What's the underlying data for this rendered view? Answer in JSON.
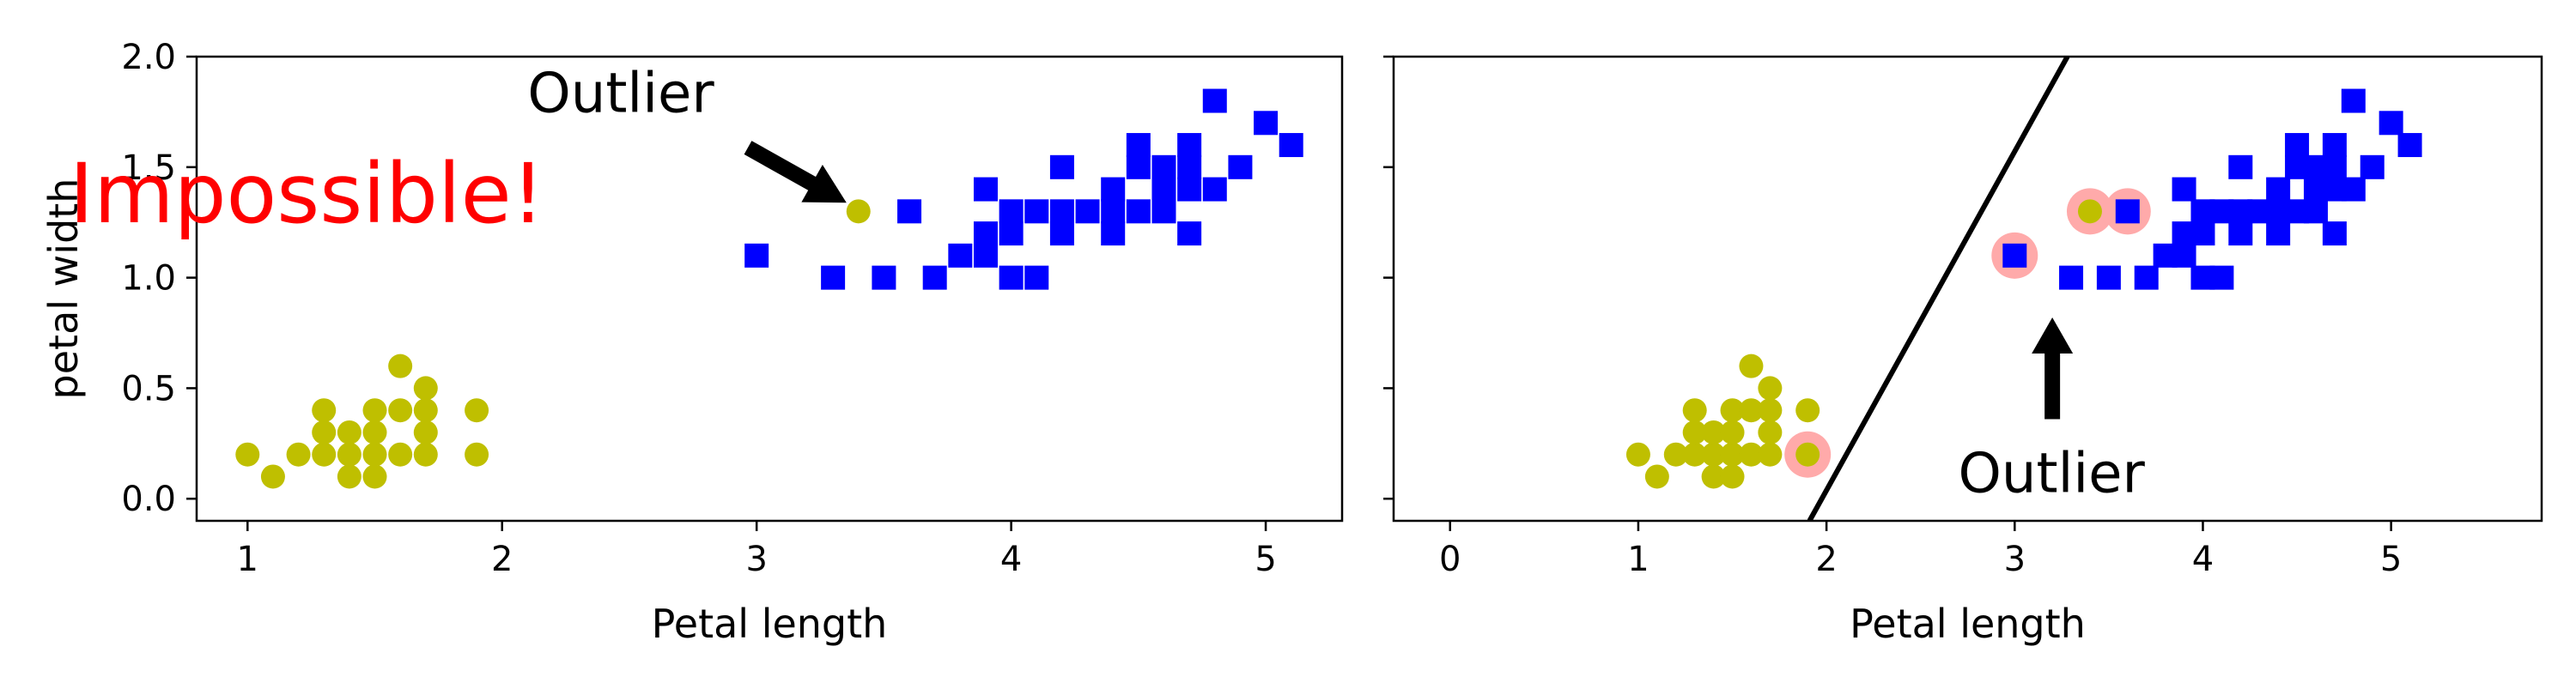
{
  "chart_data": [
    {
      "type": "scatter",
      "xlabel": "Petal length",
      "ylabel": "petal width",
      "xlim": [
        0.8,
        5.3
      ],
      "ylim": [
        -0.1,
        2.0
      ],
      "xticks": [
        "1",
        "2",
        "3",
        "4",
        "5"
      ],
      "yticks": [
        "0.0",
        "0.5",
        "1.0",
        "1.5",
        "2.0"
      ],
      "grid": false,
      "series": [
        {
          "marker": "circle",
          "color": "#bfbf00",
          "points": [
            [
              1.0,
              0.2
            ],
            [
              1.1,
              0.1
            ],
            [
              1.2,
              0.2
            ],
            [
              1.3,
              0.2
            ],
            [
              1.3,
              0.3
            ],
            [
              1.3,
              0.4
            ],
            [
              1.4,
              0.1
            ],
            [
              1.4,
              0.2
            ],
            [
              1.4,
              0.3
            ],
            [
              1.5,
              0.1
            ],
            [
              1.5,
              0.2
            ],
            [
              1.5,
              0.3
            ],
            [
              1.5,
              0.4
            ],
            [
              1.6,
              0.2
            ],
            [
              1.6,
              0.4
            ],
            [
              1.6,
              0.6
            ],
            [
              1.7,
              0.2
            ],
            [
              1.7,
              0.3
            ],
            [
              1.7,
              0.4
            ],
            [
              1.7,
              0.5
            ],
            [
              1.9,
              0.2
            ],
            [
              1.9,
              0.4
            ],
            [
              3.4,
              1.3
            ]
          ]
        },
        {
          "marker": "square",
          "color": "#0000ff",
          "points": [
            [
              3.0,
              1.1
            ],
            [
              3.3,
              1.0
            ],
            [
              3.5,
              1.0
            ],
            [
              3.6,
              1.3
            ],
            [
              3.7,
              1.0
            ],
            [
              3.8,
              1.1
            ],
            [
              3.9,
              1.1
            ],
            [
              3.9,
              1.2
            ],
            [
              3.9,
              1.4
            ],
            [
              4.0,
              1.0
            ],
            [
              4.0,
              1.2
            ],
            [
              4.0,
              1.3
            ],
            [
              4.1,
              1.0
            ],
            [
              4.1,
              1.3
            ],
            [
              4.2,
              1.2
            ],
            [
              4.2,
              1.3
            ],
            [
              4.2,
              1.5
            ],
            [
              4.3,
              1.3
            ],
            [
              4.4,
              1.2
            ],
            [
              4.4,
              1.3
            ],
            [
              4.4,
              1.4
            ],
            [
              4.5,
              1.3
            ],
            [
              4.5,
              1.5
            ],
            [
              4.5,
              1.6
            ],
            [
              4.6,
              1.3
            ],
            [
              4.6,
              1.4
            ],
            [
              4.6,
              1.5
            ],
            [
              4.7,
              1.2
            ],
            [
              4.7,
              1.4
            ],
            [
              4.7,
              1.5
            ],
            [
              4.7,
              1.6
            ],
            [
              4.8,
              1.4
            ],
            [
              4.8,
              1.8
            ],
            [
              4.9,
              1.5
            ],
            [
              5.0,
              1.7
            ],
            [
              5.1,
              1.6
            ]
          ]
        }
      ],
      "annotations": [
        {
          "text": "Outlier",
          "point": [
            3.4,
            1.3
          ],
          "text_pos": [
            2.1,
            1.75
          ],
          "arrow": true
        },
        {
          "text": "Impossible!",
          "pos": [
            0.3,
            1.25
          ],
          "color": "#ff0000"
        }
      ]
    },
    {
      "type": "scatter",
      "xlabel": "Petal length",
      "ylabel": "",
      "xlim": [
        -0.3,
        5.8
      ],
      "ylim": [
        -0.1,
        2.0
      ],
      "xticks": [
        "0",
        "1",
        "2",
        "3",
        "4",
        "5"
      ],
      "yticks": [],
      "grid": false,
      "series": [
        {
          "marker": "circle",
          "color": "#bfbf00",
          "points": [
            [
              1.0,
              0.2
            ],
            [
              1.1,
              0.1
            ],
            [
              1.2,
              0.2
            ],
            [
              1.3,
              0.2
            ],
            [
              1.3,
              0.3
            ],
            [
              1.3,
              0.4
            ],
            [
              1.4,
              0.1
            ],
            [
              1.4,
              0.2
            ],
            [
              1.4,
              0.3
            ],
            [
              1.5,
              0.1
            ],
            [
              1.5,
              0.2
            ],
            [
              1.5,
              0.3
            ],
            [
              1.5,
              0.4
            ],
            [
              1.6,
              0.2
            ],
            [
              1.6,
              0.4
            ],
            [
              1.6,
              0.6
            ],
            [
              1.7,
              0.2
            ],
            [
              1.7,
              0.3
            ],
            [
              1.7,
              0.4
            ],
            [
              1.7,
              0.5
            ],
            [
              1.9,
              0.2
            ],
            [
              1.9,
              0.4
            ],
            [
              3.4,
              1.3
            ]
          ]
        },
        {
          "marker": "square",
          "color": "#0000ff",
          "points": [
            [
              3.0,
              1.1
            ],
            [
              3.3,
              1.0
            ],
            [
              3.5,
              1.0
            ],
            [
              3.6,
              1.3
            ],
            [
              3.7,
              1.0
            ],
            [
              3.8,
              1.1
            ],
            [
              3.9,
              1.1
            ],
            [
              3.9,
              1.2
            ],
            [
              3.9,
              1.4
            ],
            [
              4.0,
              1.0
            ],
            [
              4.0,
              1.2
            ],
            [
              4.0,
              1.3
            ],
            [
              4.1,
              1.0
            ],
            [
              4.1,
              1.3
            ],
            [
              4.2,
              1.2
            ],
            [
              4.2,
              1.3
            ],
            [
              4.2,
              1.5
            ],
            [
              4.3,
              1.3
            ],
            [
              4.4,
              1.2
            ],
            [
              4.4,
              1.3
            ],
            [
              4.4,
              1.4
            ],
            [
              4.5,
              1.3
            ],
            [
              4.5,
              1.5
            ],
            [
              4.5,
              1.6
            ],
            [
              4.6,
              1.3
            ],
            [
              4.6,
              1.4
            ],
            [
              4.6,
              1.5
            ],
            [
              4.7,
              1.2
            ],
            [
              4.7,
              1.4
            ],
            [
              4.7,
              1.5
            ],
            [
              4.7,
              1.6
            ],
            [
              4.8,
              1.4
            ],
            [
              4.8,
              1.8
            ],
            [
              4.9,
              1.5
            ],
            [
              5.0,
              1.7
            ],
            [
              5.1,
              1.6
            ]
          ]
        }
      ],
      "support_vectors": {
        "color": "#ffaaaa",
        "points": [
          [
            1.9,
            0.2
          ],
          [
            3.0,
            1.1
          ],
          [
            3.4,
            1.3
          ],
          [
            3.6,
            1.3
          ]
        ]
      },
      "decision_boundary": {
        "color": "#000000",
        "points": [
          [
            1.91,
            -0.1
          ],
          [
            3.28,
            2.0
          ]
        ]
      },
      "annotations": [
        {
          "text": "Outlier",
          "point": [
            3.2,
            0.82
          ],
          "text_pos": [
            2.7,
            0.03
          ],
          "arrow": true,
          "arrow_tail": [
            3.2,
            0.36
          ]
        }
      ]
    }
  ]
}
